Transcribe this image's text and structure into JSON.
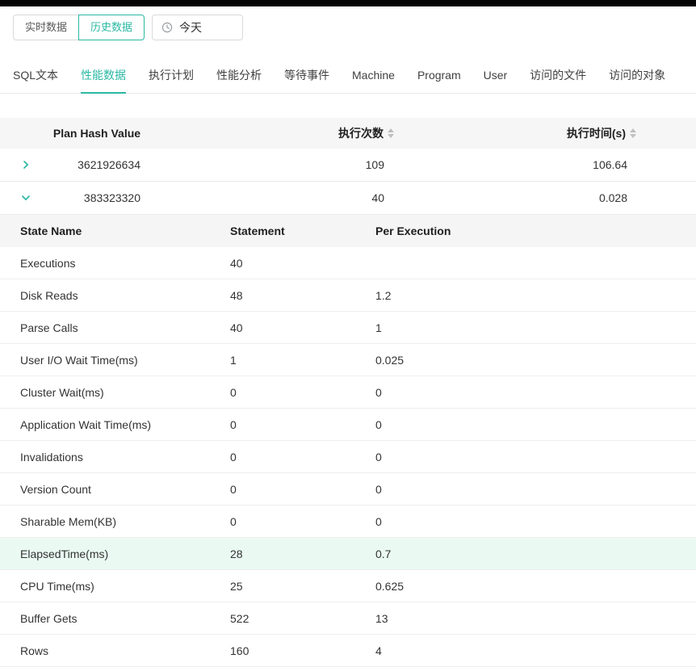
{
  "colors": {
    "accent": "#2bb8a3",
    "highlight_row": "#eafaf3",
    "header_bg": "#f6f6f7"
  },
  "toolbar": {
    "realtime_label": "实时数据",
    "history_label": "历史数据",
    "date_label": "今天",
    "clock_icon": "clock"
  },
  "tabs": [
    {
      "key": "sql-text",
      "label": "SQL文本",
      "active": false
    },
    {
      "key": "performance-data",
      "label": "性能数据",
      "active": true
    },
    {
      "key": "execution-plan",
      "label": "执行计划",
      "active": false
    },
    {
      "key": "performance-analysis",
      "label": "性能分析",
      "active": false
    },
    {
      "key": "wait-events",
      "label": "等待事件",
      "active": false
    },
    {
      "key": "machine",
      "label": "Machine",
      "active": false
    },
    {
      "key": "program",
      "label": "Program",
      "active": false
    },
    {
      "key": "user",
      "label": "User",
      "active": false
    },
    {
      "key": "accessed-files",
      "label": "访问的文件",
      "active": false
    },
    {
      "key": "accessed-objects",
      "label": "访问的对象",
      "active": false
    }
  ],
  "main_table": {
    "columns": [
      "Plan Hash Value",
      "执行次数",
      "执行时间(s)"
    ],
    "rows": [
      {
        "plan_hash": "3621926634",
        "exec_count": "109",
        "exec_time": "106.64",
        "expanded": false
      },
      {
        "plan_hash": "383323320",
        "exec_count": "40",
        "exec_time": "0.028",
        "expanded": true
      }
    ]
  },
  "detail_table": {
    "columns": [
      "State Name",
      "Statement",
      "Per Execution"
    ],
    "highlighted_row_index": 9,
    "rows": [
      [
        "Executions",
        "40",
        ""
      ],
      [
        "Disk Reads",
        "48",
        "1.2"
      ],
      [
        "Parse Calls",
        "40",
        "1"
      ],
      [
        "User I/O Wait Time(ms)",
        "1",
        "0.025"
      ],
      [
        "Cluster Wait(ms)",
        "0",
        "0"
      ],
      [
        "Application Wait Time(ms)",
        "0",
        "0"
      ],
      [
        "Invalidations",
        "0",
        "0"
      ],
      [
        "Version Count",
        "0",
        "0"
      ],
      [
        "Sharable Mem(KB)",
        "0",
        "0"
      ],
      [
        "ElapsedTime(ms)",
        "28",
        "0.7"
      ],
      [
        "CPU Time(ms)",
        "25",
        "0.625"
      ],
      [
        "Buffer Gets",
        "522",
        "13"
      ],
      [
        "Rows",
        "160",
        "4"
      ]
    ]
  }
}
